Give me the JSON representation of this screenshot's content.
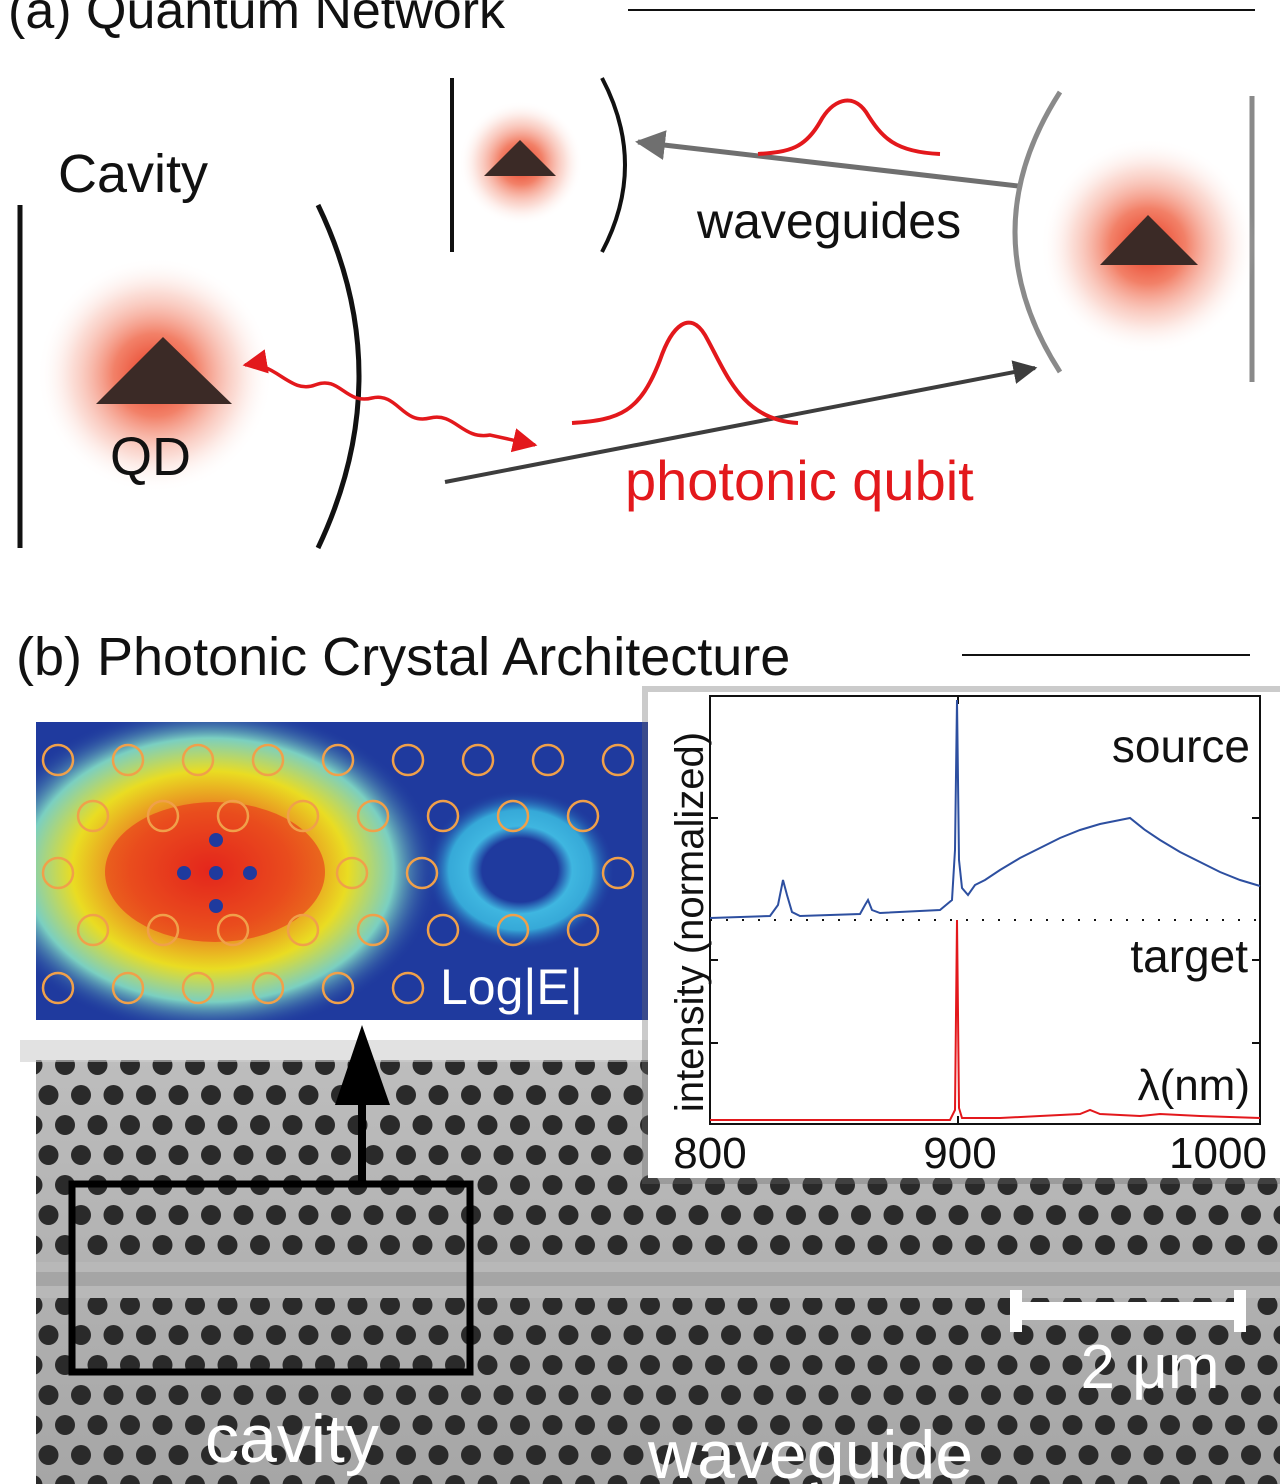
{
  "panel_a": {
    "title": "(a) Quantum Network",
    "cavity_label": "Cavity",
    "qd_label": "QD",
    "waveguides_label": "waveguides",
    "photonic_qubit_label": "photonic qubit"
  },
  "panel_b": {
    "title": "(b) Photonic Crystal Architecture",
    "field_label": "Log|E|",
    "cavity_label": "cavity",
    "waveguide_label": "waveguide",
    "scale_bar_label": "2 μm"
  },
  "spectrum": {
    "ylabel": "intensity (normalized)",
    "xlabel": "λ(nm)",
    "source_label": "source",
    "target_label": "target",
    "tick_labels": [
      "800",
      "900",
      "1000"
    ],
    "xlim": [
      800,
      1010
    ]
  },
  "colors": {
    "red": "#e3181c",
    "dark": "#3b2a26",
    "blue": "#2d4fa0",
    "grey": "#8a8a8a"
  }
}
